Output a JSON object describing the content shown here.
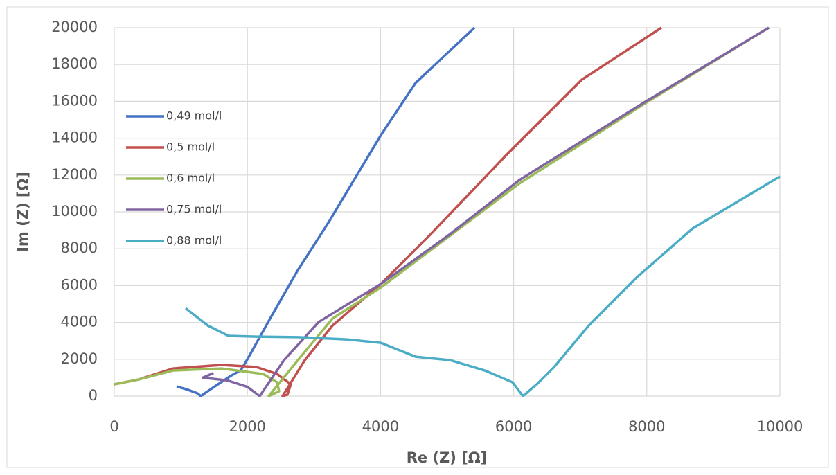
{
  "chart_data": {
    "type": "line",
    "x_label": "Re (Z) [Ω]",
    "y_label": "Im (Z) [Ω]",
    "xlim": [
      0,
      10000
    ],
    "ylim": [
      0,
      20000
    ],
    "xticks": [
      0,
      2000,
      4000,
      6000,
      8000,
      10000
    ],
    "yticks": [
      0,
      2000,
      4000,
      6000,
      8000,
      10000,
      12000,
      14000,
      16000,
      18000,
      20000
    ],
    "grid": true,
    "legend": "upper left",
    "series": [
      {
        "name": "0,49 mol/l",
        "color": "#4472c4",
        "x": [
          937,
          1100,
          1250,
          1300,
          1500,
          1750,
          1900,
          2000,
          2341,
          2758,
          3226,
          4006,
          4526,
          5411
        ],
        "values": [
          526,
          350,
          150,
          0,
          500,
          1100,
          1400,
          2000,
          4210,
          6840,
          9470,
          14170,
          17000,
          20000
        ]
      },
      {
        "name": "0,5 mol/l",
        "color": "#c0504d",
        "x": [
          0,
          364,
          885,
          1613,
          2133,
          2445,
          2653,
          2601,
          2528,
          2862,
          3278,
          4006,
          4735,
          5880,
          7025,
          8220
        ],
        "values": [
          640,
          900,
          1500,
          1690,
          1580,
          1200,
          640,
          80,
          0,
          1950,
          3830,
          6090,
          8720,
          13050,
          17180,
          20000
        ]
      },
      {
        "name": "0,6 mol/l",
        "color": "#9bbb59",
        "x": [
          0,
          364,
          885,
          1613,
          2237,
          2445,
          2476,
          2320,
          2758,
          3278,
          4006,
          5047,
          6087,
          7960,
          9834
        ],
        "values": [
          640,
          900,
          1390,
          1500,
          1200,
          750,
          260,
          0,
          1950,
          4210,
          5900,
          8720,
          11540,
          15860,
          20000
        ]
      },
      {
        "name": "0,75 mol/l",
        "color": "#8064a2",
        "x": [
          1490,
          1330,
          1700,
          2000,
          2185,
          2549,
          3070,
          4006,
          5047,
          6087,
          7960,
          9834
        ],
        "values": [
          1250,
          1000,
          850,
          500,
          0,
          1950,
          4020,
          6090,
          8800,
          11730,
          15940,
          20000
        ]
      },
      {
        "name": "0,88 mol/l",
        "color": "#4bacc6",
        "x": [
          1072,
          1405,
          1717,
          2133,
          2758,
          3486,
          4006,
          4526,
          5047,
          5567,
          5983,
          6139,
          6347,
          6608,
          7128,
          7856,
          8689,
          10000
        ],
        "values": [
          4770,
          3830,
          3270,
          3230,
          3200,
          3080,
          2890,
          2140,
          1950,
          1390,
          750,
          0,
          640,
          1580,
          3830,
          6470,
          9100,
          11920
        ]
      }
    ]
  }
}
